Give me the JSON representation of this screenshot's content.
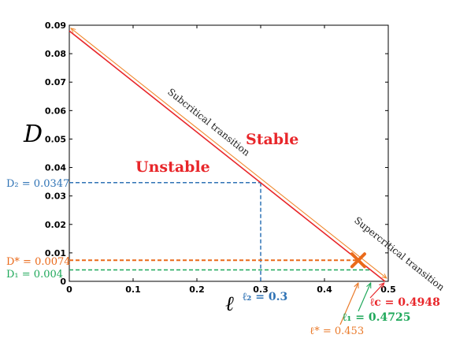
{
  "chart_data": {
    "type": "line",
    "xlim": [
      0,
      0.5
    ],
    "ylim": [
      0,
      0.09
    ],
    "x_ticks": [
      "0",
      "0.1",
      "0.2",
      "0.3",
      "0.4",
      "0.5"
    ],
    "y_ticks": [
      "0",
      "0.01",
      "0.02",
      "0.03",
      "0.04",
      "0.05",
      "0.06",
      "0.07",
      "0.08",
      "0.09"
    ],
    "xlabel": "ℓ",
    "ylabel": "D",
    "grid": false,
    "colors": {
      "boundary": "#e8262a",
      "transition": "#f08a30",
      "d2": "#2f73b5",
      "dstar": "#ea6a1a",
      "d1": "#1fa85a",
      "lstar": "#ea7a2a",
      "l1": "#1fa85a",
      "lc": "#e8262a"
    },
    "series": [
      {
        "x": [
          0,
          0.4948
        ],
        "y": [
          0.088,
          0
        ]
      },
      {
        "x": [
          0,
          0.5
        ],
        "y": [
          0.0895,
          0.0008
        ]
      }
    ],
    "points": [
      {
        "x": 0.453,
        "y": 0.0074,
        "marker": "x"
      }
    ],
    "reference_lines": [
      {
        "y": 0.0347,
        "x_end": 0.3
      },
      {
        "y": 0.0074,
        "x_end": 0.453
      },
      {
        "y": 0.004,
        "x_end": 0.4725
      }
    ],
    "annotations": {
      "unstable": "Unstable",
      "stable": "Stable",
      "subcritical": "Subcritical transition",
      "supercritical": "Supercritical transition",
      "d2_label": "D₂ = 0.0347",
      "dstar_label": "D* = 0.0074",
      "d1_label": "D₁ = 0.004",
      "l2_label": "ℓ₂ = 0.3",
      "lc_label": "ℓc = 0.4948",
      "l1_label": "ℓ₁ = 0.4725",
      "lstar_label": "ℓ* = 0.453"
    }
  }
}
